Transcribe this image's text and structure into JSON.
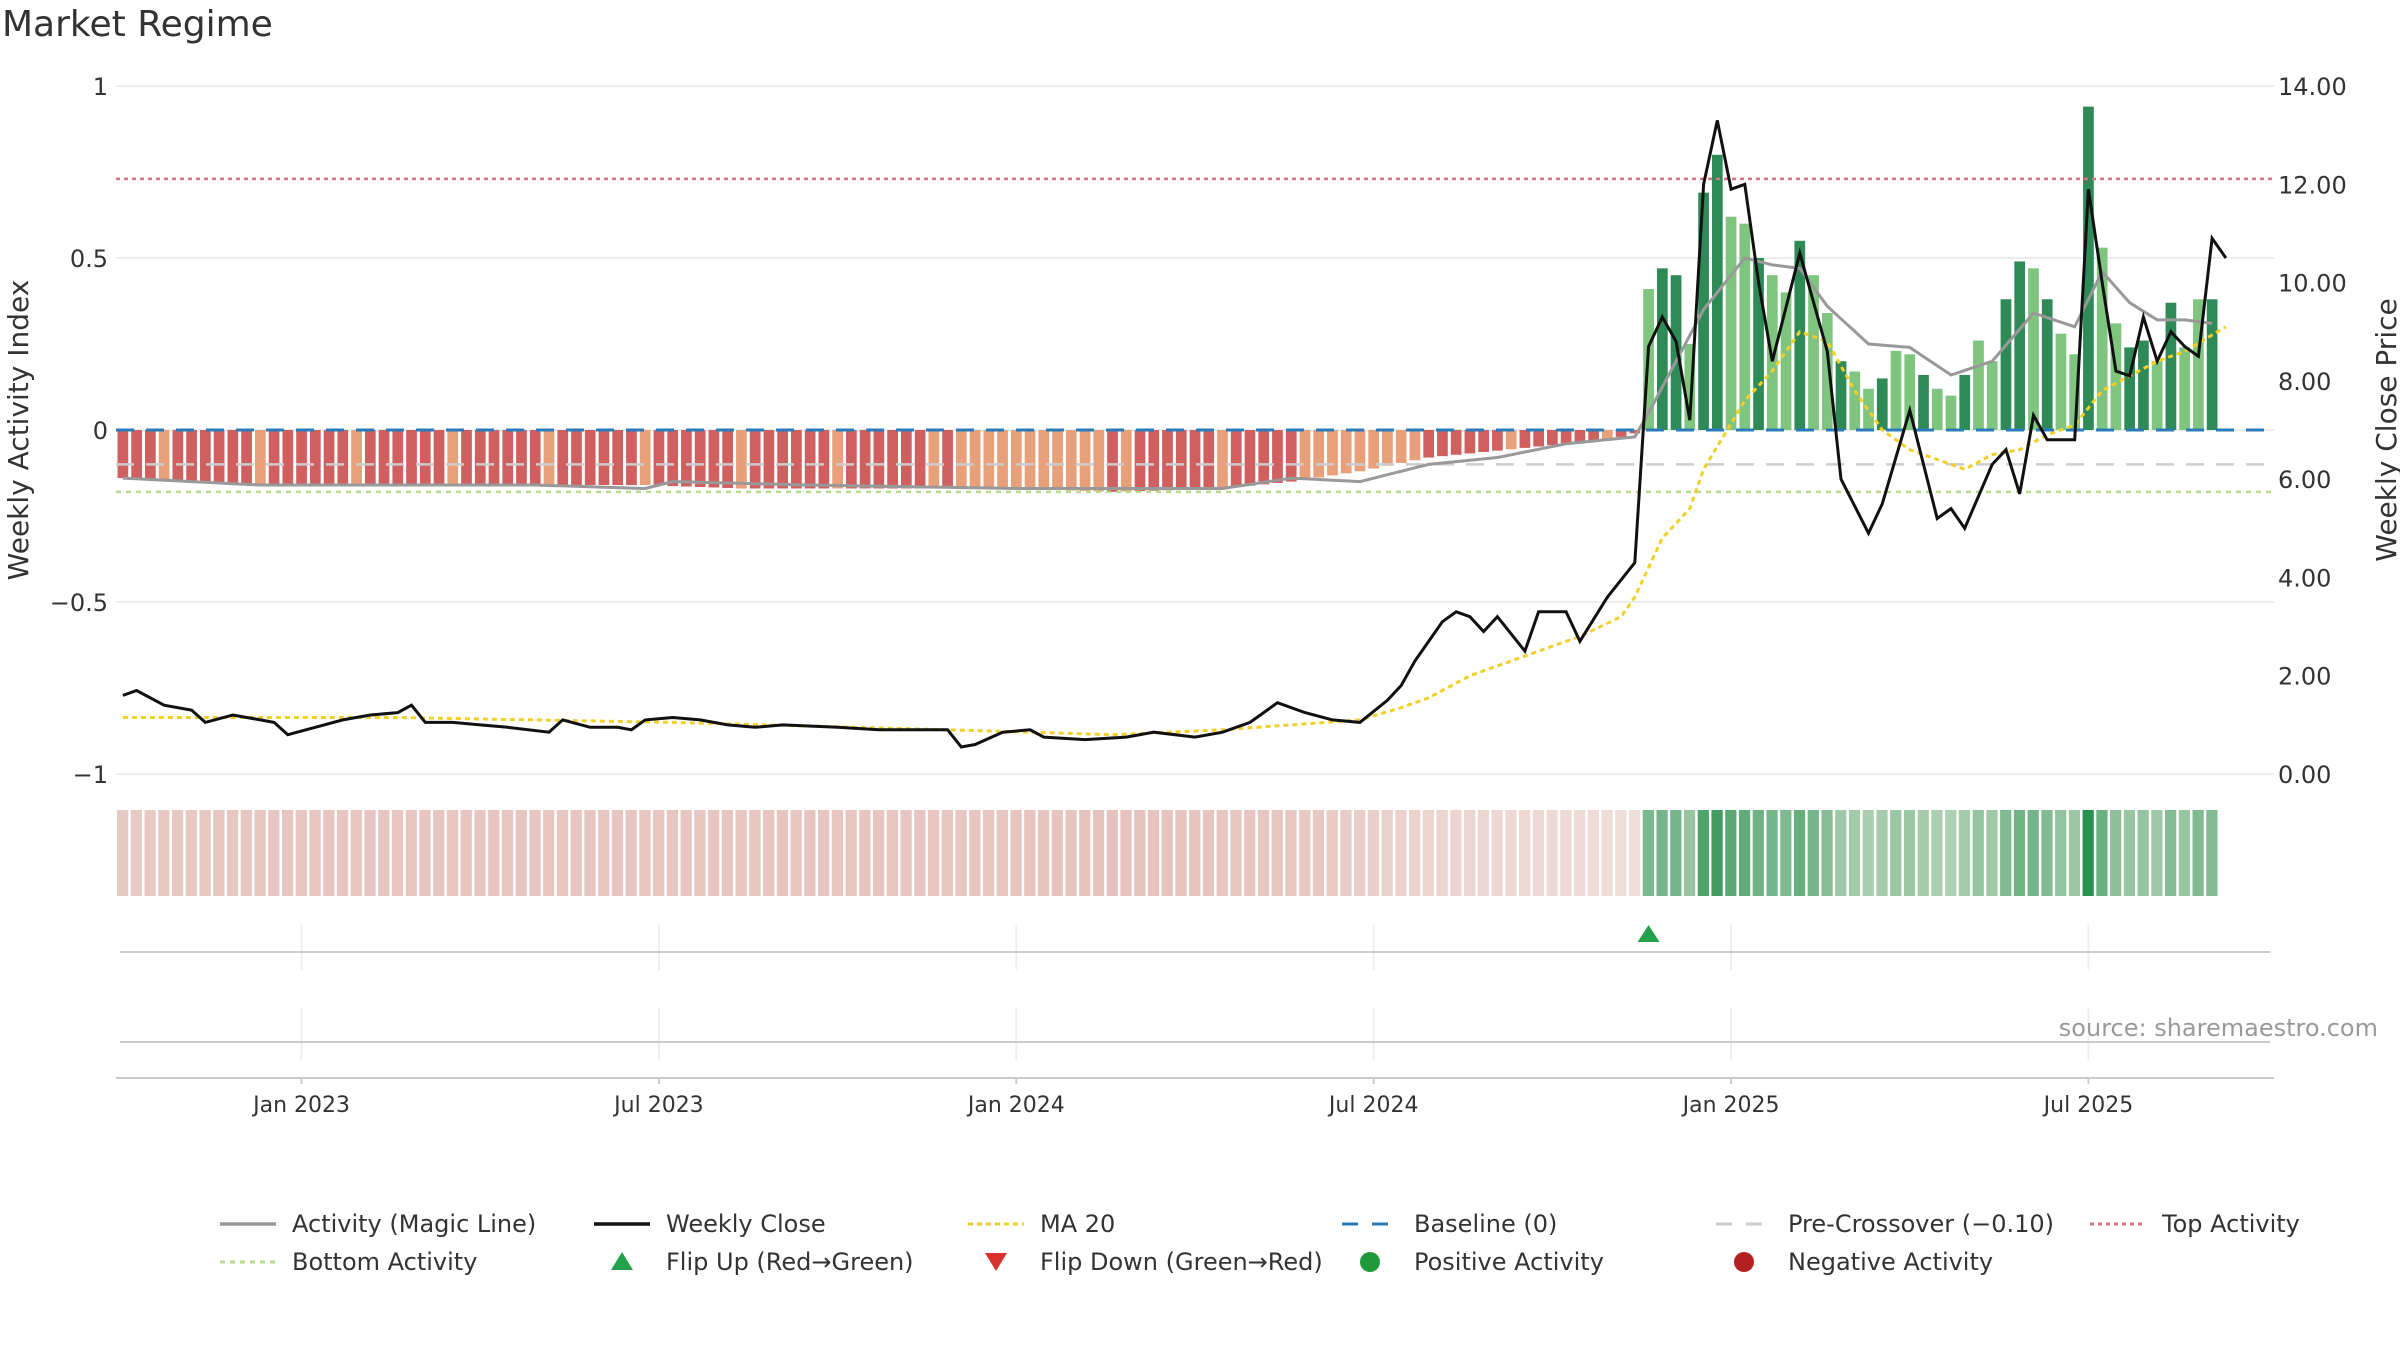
{
  "title": "Market Regime",
  "source": "source: sharemaestro.com",
  "colors": {
    "pos_dark": "#2e8b57",
    "pos_light": "#7fc47f",
    "neg_dark": "#d06060",
    "neg_light": "#e8a07a",
    "magic_line": "#999999",
    "close": "#111111",
    "ma20": "#f2d028",
    "baseline": "#2b7bba",
    "pre_crossover": "#cccccc",
    "top_activity": "#d9707f",
    "bottom_activity": "#b9dc8a",
    "flip_up": "#22a04a"
  },
  "chart_data": {
    "type": "bar",
    "title": "Market Regime",
    "left_axis": {
      "label": "Weekly Activity Index",
      "range": [
        -1,
        1
      ],
      "ticks": [
        "1",
        "0.5",
        "0",
        "−0.5",
        "−1"
      ],
      "tick_values": [
        1,
        0.5,
        0,
        -0.5,
        -1
      ]
    },
    "right_axis": {
      "label": "Weekly Close Price",
      "range": [
        0,
        14
      ],
      "ticks": [
        "14.00",
        "12.00",
        "10.00",
        "8.00",
        "6.00",
        "4.00",
        "2.00",
        "0.00"
      ],
      "tick_values": [
        14,
        12,
        10,
        8,
        6,
        4,
        2,
        0
      ]
    },
    "x_ticks": [
      "Jan 2023",
      "Jul 2023",
      "Jan 2024",
      "Jul 2024",
      "Jan 2025",
      "Jul 2025"
    ],
    "x_tick_weeks": [
      13,
      39,
      65,
      91,
      117,
      143
    ],
    "total_weeks": 157,
    "reference_lines": {
      "top_activity": 0.73,
      "bottom_activity": -0.18,
      "pre_crossover": -0.1,
      "baseline": 0
    },
    "legend": [
      "Activity (Magic Line)",
      "Weekly Close",
      "MA 20",
      "Baseline (0)",
      "Pre-Crossover (−0.10)",
      "Top Activity",
      "Bottom Activity",
      "Flip Up (Red→Green)",
      "Flip Down (Green→Red)",
      "Positive Activity",
      "Negative Activity"
    ],
    "legend_placement": "bottom",
    "grid": true,
    "flip_up_week": 111,
    "activity_anchors": [
      [
        0,
        -0.14
      ],
      [
        5,
        -0.15
      ],
      [
        10,
        -0.16
      ],
      [
        20,
        -0.16
      ],
      [
        30,
        -0.16
      ],
      [
        38,
        -0.16
      ],
      [
        45,
        -0.17
      ],
      [
        55,
        -0.17
      ],
      [
        65,
        -0.17
      ],
      [
        72,
        -0.18
      ],
      [
        80,
        -0.17
      ],
      [
        85,
        -0.15
      ],
      [
        90,
        -0.12
      ],
      [
        95,
        -0.08
      ],
      [
        100,
        -0.06
      ],
      [
        105,
        -0.04
      ],
      [
        108,
        -0.03
      ],
      [
        110,
        -0.01
      ],
      [
        111,
        0.41
      ],
      [
        112,
        0.47
      ],
      [
        113,
        0.45
      ],
      [
        114,
        0.25
      ],
      [
        115,
        0.69
      ],
      [
        116,
        0.8
      ],
      [
        117,
        0.62
      ],
      [
        118,
        0.6
      ],
      [
        119,
        0.5
      ],
      [
        120,
        0.45
      ],
      [
        121,
        0.4
      ],
      [
        122,
        0.55
      ],
      [
        123,
        0.45
      ],
      [
        124,
        0.34
      ],
      [
        125,
        0.2
      ],
      [
        126,
        0.17
      ],
      [
        127,
        0.12
      ],
      [
        128,
        0.15
      ],
      [
        129,
        0.23
      ],
      [
        130,
        0.22
      ],
      [
        131,
        0.16
      ],
      [
        132,
        0.12
      ],
      [
        133,
        0.1
      ],
      [
        134,
        0.16
      ],
      [
        135,
        0.26
      ],
      [
        136,
        0.2
      ],
      [
        137,
        0.38
      ],
      [
        138,
        0.49
      ],
      [
        139,
        0.47
      ],
      [
        140,
        0.38
      ],
      [
        141,
        0.28
      ],
      [
        142,
        0.22
      ],
      [
        143,
        0.94
      ],
      [
        144,
        0.53
      ],
      [
        145,
        0.31
      ],
      [
        146,
        0.24
      ],
      [
        147,
        0.26
      ],
      [
        148,
        0.2
      ],
      [
        149,
        0.37
      ],
      [
        150,
        0.24
      ],
      [
        151,
        0.38
      ],
      [
        152,
        0.38
      ]
    ],
    "magic_line_anchors": [
      [
        0,
        -0.14
      ],
      [
        10,
        -0.16
      ],
      [
        30,
        -0.16
      ],
      [
        38,
        -0.17
      ],
      [
        40,
        -0.15
      ],
      [
        50,
        -0.16
      ],
      [
        65,
        -0.17
      ],
      [
        80,
        -0.17
      ],
      [
        85,
        -0.14
      ],
      [
        90,
        -0.15
      ],
      [
        93,
        -0.12
      ],
      [
        95,
        -0.1
      ],
      [
        100,
        -0.08
      ],
      [
        105,
        -0.04
      ],
      [
        110,
        -0.02
      ],
      [
        111,
        0.05
      ],
      [
        113,
        0.2
      ],
      [
        115,
        0.35
      ],
      [
        118,
        0.5
      ],
      [
        120,
        0.48
      ],
      [
        122,
        0.47
      ],
      [
        124,
        0.36
      ],
      [
        127,
        0.25
      ],
      [
        130,
        0.24
      ],
      [
        133,
        0.16
      ],
      [
        136,
        0.2
      ],
      [
        139,
        0.34
      ],
      [
        142,
        0.3
      ],
      [
        144,
        0.46
      ],
      [
        146,
        0.37
      ],
      [
        148,
        0.32
      ],
      [
        150,
        0.32
      ],
      [
        152,
        0.31
      ]
    ],
    "close_anchors": [
      [
        0,
        1.6
      ],
      [
        1,
        1.7
      ],
      [
        3,
        1.4
      ],
      [
        5,
        1.3
      ],
      [
        6,
        1.05
      ],
      [
        8,
        1.2
      ],
      [
        10,
        1.1
      ],
      [
        11,
        1.05
      ],
      [
        12,
        0.8
      ],
      [
        14,
        0.95
      ],
      [
        16,
        1.1
      ],
      [
        18,
        1.2
      ],
      [
        20,
        1.25
      ],
      [
        21,
        1.4
      ],
      [
        22,
        1.05
      ],
      [
        24,
        1.05
      ],
      [
        26,
        1.0
      ],
      [
        28,
        0.95
      ],
      [
        31,
        0.85
      ],
      [
        32,
        1.1
      ],
      [
        34,
        0.95
      ],
      [
        36,
        0.95
      ],
      [
        37,
        0.9
      ],
      [
        38,
        1.1
      ],
      [
        40,
        1.15
      ],
      [
        42,
        1.1
      ],
      [
        44,
        1.0
      ],
      [
        46,
        0.95
      ],
      [
        48,
        1.0
      ],
      [
        52,
        0.95
      ],
      [
        55,
        0.9
      ],
      [
        60,
        0.9
      ],
      [
        61,
        0.55
      ],
      [
        62,
        0.6
      ],
      [
        64,
        0.85
      ],
      [
        66,
        0.9
      ],
      [
        67,
        0.75
      ],
      [
        70,
        0.7
      ],
      [
        73,
        0.75
      ],
      [
        75,
        0.85
      ],
      [
        78,
        0.75
      ],
      [
        80,
        0.85
      ],
      [
        82,
        1.05
      ],
      [
        84,
        1.45
      ],
      [
        86,
        1.25
      ],
      [
        88,
        1.1
      ],
      [
        90,
        1.05
      ],
      [
        92,
        1.5
      ],
      [
        93,
        1.8
      ],
      [
        94,
        2.3
      ],
      [
        96,
        3.1
      ],
      [
        97,
        3.3
      ],
      [
        98,
        3.2
      ],
      [
        99,
        2.9
      ],
      [
        100,
        3.2
      ],
      [
        102,
        2.5
      ],
      [
        103,
        3.3
      ],
      [
        105,
        3.3
      ],
      [
        106,
        2.7
      ],
      [
        108,
        3.6
      ],
      [
        110,
        4.3
      ],
      [
        111,
        8.7
      ],
      [
        112,
        9.3
      ],
      [
        113,
        8.8
      ],
      [
        114,
        7.2
      ],
      [
        115,
        12.0
      ],
      [
        116,
        13.3
      ],
      [
        117,
        11.9
      ],
      [
        118,
        12.0
      ],
      [
        119,
        10.0
      ],
      [
        120,
        8.4
      ],
      [
        122,
        10.6
      ],
      [
        124,
        8.6
      ],
      [
        125,
        6.0
      ],
      [
        127,
        4.9
      ],
      [
        128,
        5.5
      ],
      [
        130,
        7.4
      ],
      [
        132,
        5.2
      ],
      [
        133,
        5.4
      ],
      [
        134,
        5.0
      ],
      [
        136,
        6.3
      ],
      [
        137,
        6.6
      ],
      [
        138,
        5.7
      ],
      [
        139,
        7.3
      ],
      [
        140,
        6.8
      ],
      [
        141,
        6.8
      ],
      [
        142,
        6.8
      ],
      [
        143,
        11.9
      ],
      [
        144,
        10.0
      ],
      [
        145,
        8.2
      ],
      [
        146,
        8.1
      ],
      [
        147,
        9.3
      ],
      [
        148,
        8.4
      ],
      [
        149,
        9.0
      ],
      [
        150,
        8.7
      ],
      [
        151,
        8.5
      ],
      [
        152,
        10.9
      ],
      [
        153,
        10.5
      ]
    ],
    "ma20_anchors": [
      [
        0,
        1.15
      ],
      [
        20,
        1.15
      ],
      [
        40,
        1.05
      ],
      [
        60,
        0.9
      ],
      [
        72,
        0.8
      ],
      [
        80,
        0.9
      ],
      [
        85,
        1.0
      ],
      [
        90,
        1.1
      ],
      [
        93,
        1.35
      ],
      [
        95,
        1.55
      ],
      [
        98,
        2.0
      ],
      [
        102,
        2.4
      ],
      [
        106,
        2.8
      ],
      [
        109,
        3.2
      ],
      [
        110,
        3.6
      ],
      [
        112,
        4.8
      ],
      [
        114,
        5.4
      ],
      [
        115,
        6.2
      ],
      [
        118,
        7.6
      ],
      [
        120,
        8.2
      ],
      [
        122,
        9.0
      ],
      [
        124,
        8.8
      ],
      [
        126,
        7.8
      ],
      [
        128,
        7.0
      ],
      [
        130,
        6.6
      ],
      [
        132,
        6.4
      ],
      [
        134,
        6.2
      ],
      [
        136,
        6.5
      ],
      [
        138,
        6.6
      ],
      [
        140,
        6.9
      ],
      [
        142,
        7.1
      ],
      [
        144,
        7.8
      ],
      [
        146,
        8.1
      ],
      [
        148,
        8.4
      ],
      [
        150,
        8.6
      ],
      [
        153,
        9.1
      ]
    ],
    "ribbon": "one colored cell per week, red-tinted for negative activity, green-tinted for positive"
  }
}
